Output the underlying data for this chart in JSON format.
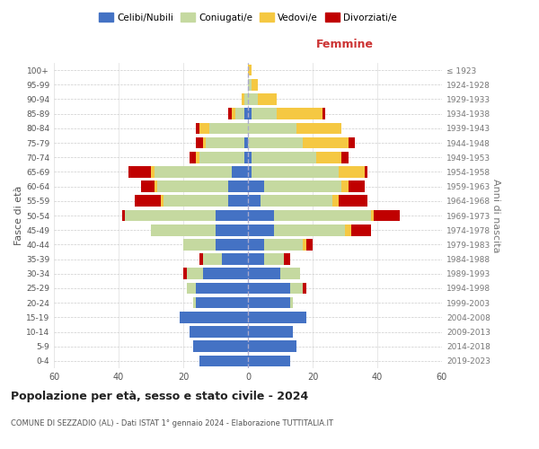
{
  "age_groups": [
    "0-4",
    "5-9",
    "10-14",
    "15-19",
    "20-24",
    "25-29",
    "30-34",
    "35-39",
    "40-44",
    "45-49",
    "50-54",
    "55-59",
    "60-64",
    "65-69",
    "70-74",
    "75-79",
    "80-84",
    "85-89",
    "90-94",
    "95-99",
    "100+"
  ],
  "birth_years": [
    "2019-2023",
    "2014-2018",
    "2009-2013",
    "2004-2008",
    "1999-2003",
    "1994-1998",
    "1989-1993",
    "1984-1988",
    "1979-1983",
    "1974-1978",
    "1969-1973",
    "1964-1968",
    "1959-1963",
    "1954-1958",
    "1949-1953",
    "1944-1948",
    "1939-1943",
    "1934-1938",
    "1929-1933",
    "1924-1928",
    "≤ 1923"
  ],
  "colors": {
    "celibi": "#4472c4",
    "coniugati": "#c5d9a0",
    "vedovi": "#f5c842",
    "divorziati": "#c00000"
  },
  "males": {
    "celibi": [
      15,
      17,
      18,
      21,
      16,
      16,
      14,
      8,
      10,
      10,
      10,
      6,
      6,
      5,
      1,
      1,
      0,
      1,
      0,
      0,
      0
    ],
    "coniugati": [
      0,
      0,
      0,
      0,
      1,
      3,
      5,
      6,
      10,
      20,
      28,
      20,
      22,
      24,
      14,
      12,
      12,
      3,
      1,
      0,
      0
    ],
    "vedovi": [
      0,
      0,
      0,
      0,
      0,
      0,
      0,
      0,
      0,
      0,
      0,
      1,
      1,
      1,
      1,
      1,
      3,
      1,
      1,
      0,
      0
    ],
    "divorziati": [
      0,
      0,
      0,
      0,
      0,
      0,
      1,
      1,
      0,
      0,
      1,
      8,
      4,
      7,
      2,
      2,
      1,
      1,
      0,
      0,
      0
    ]
  },
  "females": {
    "celibi": [
      13,
      15,
      14,
      18,
      13,
      13,
      10,
      5,
      5,
      8,
      8,
      4,
      5,
      1,
      1,
      0,
      0,
      1,
      0,
      0,
      0
    ],
    "coniugati": [
      0,
      0,
      0,
      0,
      1,
      4,
      6,
      6,
      12,
      22,
      30,
      22,
      24,
      27,
      20,
      17,
      15,
      8,
      3,
      1,
      0
    ],
    "vedovi": [
      0,
      0,
      0,
      0,
      0,
      0,
      0,
      0,
      1,
      2,
      1,
      2,
      2,
      8,
      8,
      14,
      14,
      14,
      6,
      2,
      1
    ],
    "divorziati": [
      0,
      0,
      0,
      0,
      0,
      1,
      0,
      2,
      2,
      6,
      8,
      9,
      5,
      1,
      2,
      2,
      0,
      1,
      0,
      0,
      0
    ]
  },
  "title": "Popolazione per età, sesso e stato civile - 2024",
  "subtitle": "COMUNE DI SEZZADIO (AL) - Dati ISTAT 1° gennaio 2024 - Elaborazione TUTTITALIA.IT",
  "xlabel_right": "Femmine",
  "ylabel_left": "Fasce di età",
  "ylabel_right": "Anni di nascita",
  "xlim": 60,
  "legend_labels": [
    "Celibi/Nubili",
    "Coniugati/e",
    "Vedovi/e",
    "Divorziati/e"
  ],
  "background_color": "#ffffff"
}
